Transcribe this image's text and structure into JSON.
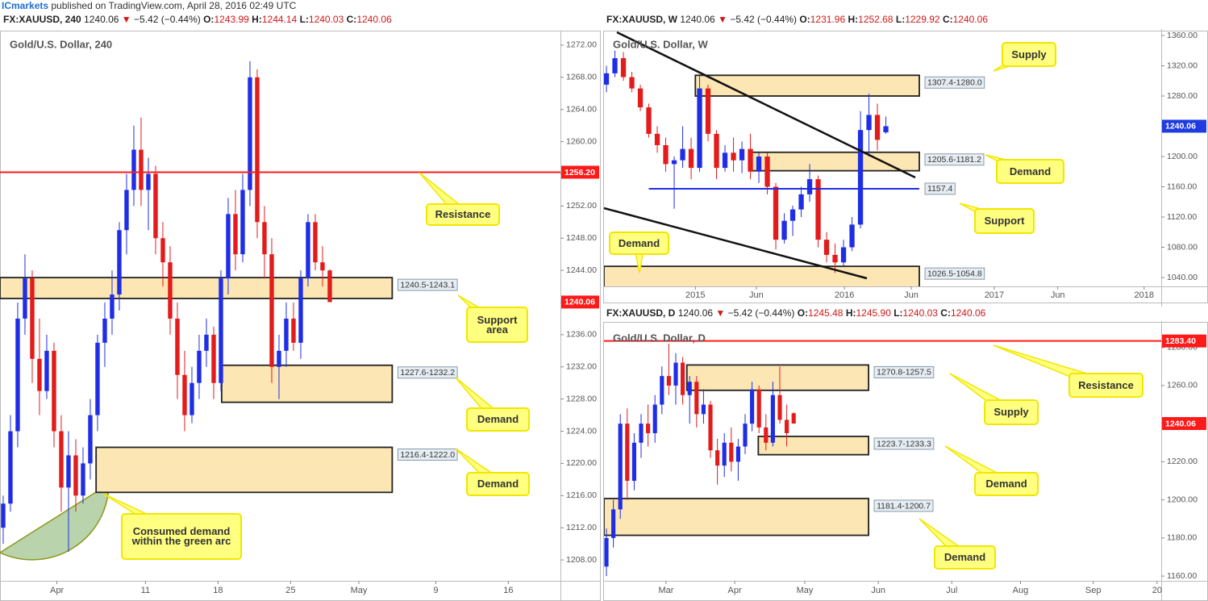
{
  "header": {
    "brand": "ICmarkets",
    "text": "published on TradingView.com, April 28, 2016 02:49 UTC"
  },
  "chart_data": [
    {
      "type": "candlestick",
      "symbol": "FX:XAUUSD, 240",
      "last": 1240.06,
      "arrow": "▼",
      "change": "−5.42 (−0.44%)",
      "ohlc": [
        {
          "name": "O:",
          "value": 1243.99
        },
        {
          "name": "H:",
          "value": 1244.14
        },
        {
          "name": "L:",
          "value": 1240.03
        },
        {
          "name": "C:",
          "value": 1240.06
        }
      ],
      "title": "Gold/U.S. Dollar, 240",
      "open": [
        1212,
        1215,
        1224,
        1238,
        1243,
        1233,
        1229,
        1234,
        1224,
        1217,
        1221,
        1216,
        1220,
        1226,
        1235,
        1238,
        1241,
        1249,
        1254,
        1259,
        1254,
        1256,
        1248,
        1245,
        1238,
        1231,
        1226,
        1230,
        1234,
        1236,
        1230,
        1243,
        1251,
        1246,
        1254,
        1268,
        1250,
        1246,
        1232,
        1234,
        1238,
        1235,
        1243,
        1250,
        1245,
        1243.99
      ],
      "high": [
        1216,
        1226,
        1240,
        1246,
        1244,
        1238,
        1236,
        1235,
        1226,
        1224,
        1223,
        1222,
        1228,
        1236,
        1240,
        1244,
        1250,
        1256,
        1262,
        1263,
        1258,
        1257,
        1250,
        1247,
        1240,
        1234,
        1232,
        1236,
        1238,
        1237,
        1244,
        1253,
        1254,
        1256,
        1270,
        1269,
        1252,
        1248,
        1236,
        1240,
        1240,
        1244,
        1251,
        1251,
        1247,
        1244.14
      ],
      "low": [
        1210,
        1214,
        1222,
        1236,
        1230,
        1226,
        1228,
        1222,
        1214,
        1209,
        1214,
        1215,
        1218,
        1224,
        1232,
        1236,
        1239,
        1246,
        1252,
        1252,
        1249,
        1246,
        1242,
        1236,
        1228,
        1224,
        1225,
        1228,
        1232,
        1228,
        1229,
        1241,
        1244,
        1245,
        1252,
        1248,
        1243,
        1230,
        1228,
        1232,
        1234,
        1233,
        1242,
        1244,
        1242,
        1240.03
      ],
      "close": [
        1215,
        1224,
        1238,
        1243,
        1233,
        1229,
        1234,
        1224,
        1217,
        1221,
        1216,
        1220,
        1226,
        1235,
        1238,
        1241,
        1249,
        1254,
        1259,
        1254,
        1256,
        1248,
        1245,
        1238,
        1231,
        1226,
        1230,
        1234,
        1236,
        1230,
        1243,
        1251,
        1246,
        1254,
        1268,
        1250,
        1246,
        1232,
        1234,
        1238,
        1235,
        1243,
        1250,
        1245,
        1243.99,
        1240.06
      ],
      "up_color": "#1f2ee6",
      "down_color": "#e31b1b",
      "last_color": "#ff1a1a",
      "xlim": [
        -0.44,
        76.78
      ],
      "xticks": [
        {
          "value": 7.4,
          "label": "Apr"
        },
        {
          "value": 19.6,
          "label": "11"
        },
        {
          "value": 29.6,
          "label": "18"
        },
        {
          "value": 39.6,
          "label": "25"
        },
        {
          "value": 49,
          "label": "May"
        },
        {
          "value": 59.6,
          "label": "9"
        },
        {
          "value": 69.6,
          "label": "16"
        }
      ],
      "ylim": [
        1205.4,
        1273.6
      ],
      "yticks": [
        {
          "value": 1208,
          "label": "1208.00"
        },
        {
          "value": 1212,
          "label": "1212.00"
        },
        {
          "value": 1216,
          "label": "1216.00"
        },
        {
          "value": 1220,
          "label": "1220.00"
        },
        {
          "value": 1224,
          "label": "1224.00"
        },
        {
          "value": 1228,
          "label": "1228.00"
        },
        {
          "value": 1232,
          "label": "1232.00"
        },
        {
          "value": 1236,
          "label": "1236.00"
        },
        {
          "value": 1240,
          "label": "1240.00"
        },
        {
          "value": 1244,
          "label": "1244.00"
        },
        {
          "value": 1248,
          "label": "1248.00"
        },
        {
          "value": 1252,
          "label": "1252.00"
        },
        {
          "value": 1256,
          "label": "1256.00"
        },
        {
          "value": 1260,
          "label": "1260.00"
        },
        {
          "value": 1264,
          "label": "1264.00"
        },
        {
          "value": 1268,
          "label": "1268.00"
        },
        {
          "value": 1272,
          "label": "1272.00"
        }
      ],
      "zones": [
        {
          "range": [
            1240.5,
            1243.1
          ],
          "x": [
            -0.44,
            53.6
          ],
          "label": "1240.5-1243.1"
        },
        {
          "range": [
            1227.6,
            1232.2
          ],
          "x": [
            30.1,
            53.6
          ],
          "label": "1227.6-1232.2"
        },
        {
          "range": [
            1216.4,
            1222.0
          ],
          "x": [
            12.8,
            53.6
          ],
          "label": "1216.4-1222.0"
        }
      ],
      "levels": [
        {
          "value": 1256.2,
          "label": "1256.20",
          "color": "#ff1a1a",
          "x": [
            -0.44,
            76.78
          ]
        }
      ],
      "callouts": [
        "Resistance",
        "Support area",
        "Demand",
        "Demand",
        "Consumed demand within the green arc"
      ]
    },
    {
      "type": "candlestick",
      "symbol": "FX:XAUUSD, W",
      "last": 1240.06,
      "arrow": "▼",
      "change": "−5.42 (−0.44%)",
      "ohlc": [
        {
          "name": "O:",
          "value": 1231.96
        },
        {
          "name": "H:",
          "value": 1252.68
        },
        {
          "name": "L:",
          "value": 1229.92
        },
        {
          "name": "C:",
          "value": 1240.06
        }
      ],
      "title": "Gold/U.S. Dollar, W",
      "open": [
        1295,
        1310,
        1330,
        1305,
        1290,
        1265,
        1230,
        1215,
        1190,
        1195,
        1210,
        1185,
        1290,
        1230,
        1185,
        1205,
        1195,
        1210,
        1180,
        1200,
        1160,
        1090,
        1115,
        1130,
        1150,
        1170,
        1090,
        1070,
        1060,
        1080,
        1110,
        1235,
        1255,
        1231.96
      ],
      "high": [
        1320,
        1340,
        1338,
        1312,
        1295,
        1270,
        1240,
        1225,
        1200,
        1240,
        1225,
        1307,
        1295,
        1235,
        1215,
        1225,
        1220,
        1230,
        1205,
        1205,
        1165,
        1125,
        1135,
        1160,
        1190,
        1175,
        1100,
        1085,
        1090,
        1120,
        1260,
        1283,
        1270,
        1252.68
      ],
      "low": [
        1285,
        1305,
        1300,
        1285,
        1260,
        1225,
        1205,
        1180,
        1131,
        1185,
        1170,
        1180,
        1220,
        1170,
        1180,
        1180,
        1178,
        1170,
        1165,
        1150,
        1077,
        1085,
        1095,
        1120,
        1140,
        1080,
        1060,
        1046,
        1055,
        1075,
        1105,
        1200,
        1208,
        1229.92
      ],
      "close": [
        1310,
        1330,
        1305,
        1290,
        1265,
        1230,
        1215,
        1190,
        1195,
        1210,
        1185,
        1290,
        1230,
        1185,
        1205,
        1195,
        1210,
        1180,
        1200,
        1160,
        1090,
        1115,
        1130,
        1150,
        1170,
        1090,
        1070,
        1060,
        1080,
        1110,
        1235,
        1255,
        1222,
        1240.06
      ],
      "up_color": "#1f2ee6",
      "down_color": "#e31b1b",
      "last_color": "#1f3ce0",
      "xlim": [
        -0.29,
        65.52
      ],
      "xticks": [
        {
          "value": 10.5,
          "label": "2015"
        },
        {
          "value": 17.7,
          "label": "Jun"
        },
        {
          "value": 28.1,
          "label": "2016"
        },
        {
          "value": 36,
          "label": "Jun"
        },
        {
          "value": 45.8,
          "label": "2017"
        },
        {
          "value": 53.3,
          "label": "Jun"
        },
        {
          "value": 63.5,
          "label": "2018"
        }
      ],
      "ylim": [
        1028.3,
        1366.4
      ],
      "yticks": [
        {
          "value": 1040,
          "label": "1040.00"
        },
        {
          "value": 1080,
          "label": "1080.00"
        },
        {
          "value": 1120,
          "label": "1120.00"
        },
        {
          "value": 1160,
          "label": "1160.00"
        },
        {
          "value": 1200,
          "label": "1200.00"
        },
        {
          "value": 1240,
          "label": "1240.00"
        },
        {
          "value": 1280,
          "label": "1280.00"
        },
        {
          "value": 1320,
          "label": "1320.00"
        },
        {
          "value": 1360,
          "label": "1360.00"
        }
      ],
      "zones": [
        {
          "range": [
            1307.4,
            1280.0
          ],
          "x": [
            10.5,
            36.95
          ],
          "label": "1307.4-1280.0"
        },
        {
          "range": [
            1205.6,
            1181.2
          ],
          "x": [
            17.1,
            36.95
          ],
          "label": "1205.6-1181.2"
        },
        {
          "range": [
            1026.5,
            1054.8
          ],
          "x": [
            -0.29,
            36.95
          ],
          "label": "1026.5-1054.8"
        }
      ],
      "levels": [
        {
          "value": 1157.4,
          "color": "#1f2ee6",
          "x": [
            5,
            36.95
          ]
        }
      ],
      "callouts": [
        "Supply",
        "Demand",
        "Support",
        "Demand"
      ]
    },
    {
      "type": "candlestick",
      "symbol": "FX:XAUUSD, D",
      "last": 1240.06,
      "arrow": "▼",
      "change": "−5.42 (−0.44%)",
      "ohlc": [
        {
          "name": "O:",
          "value": 1245.48
        },
        {
          "name": "H:",
          "value": {
            "value": 1245.9,
            "label": "1245.90"
          }
        },
        {
          "name": "L:",
          "value": 1240.03
        },
        {
          "name": "C:",
          "value": 1240.06
        }
      ],
      "title": "Gold/U.S. Dollar, D",
      "open": [
        1165,
        1180,
        1195,
        1240,
        1210,
        1230,
        1240,
        1235,
        1250,
        1265,
        1260,
        1272,
        1255,
        1262,
        1245,
        1250,
        1226,
        1218,
        1230,
        1220,
        1228,
        1240,
        1258,
        1238,
        1230,
        1255,
        1242,
        1245.48
      ],
      "high": [
        1185,
        1200,
        1245,
        1248,
        1235,
        1245,
        1250,
        1255,
        1270,
        1282,
        1277,
        1275,
        1265,
        1265,
        1258,
        1252,
        1232,
        1235,
        1238,
        1232,
        1245,
        1262,
        1260,
        1245,
        1262,
        1270,
        1250,
        1245.9
      ],
      "low": [
        1160,
        1175,
        1190,
        1200,
        1205,
        1222,
        1228,
        1230,
        1245,
        1255,
        1250,
        1250,
        1240,
        1238,
        1240,
        1222,
        1208,
        1212,
        1215,
        1210,
        1224,
        1236,
        1235,
        1226,
        1228,
        1240,
        1228,
        1240.03
      ],
      "close": [
        1180,
        1195,
        1240,
        1210,
        1230,
        1240,
        1235,
        1250,
        1265,
        1260,
        1272,
        1255,
        1262,
        1245,
        1250,
        1226,
        1218,
        1230,
        1220,
        1228,
        1240,
        1258,
        1238,
        1230,
        1255,
        1242,
        1235,
        1240.06
      ],
      "up_color": "#1f2ee6",
      "down_color": "#e31b1b",
      "last_color": "#ff1a1a",
      "xlim": [
        -0.35,
        80
      ],
      "xticks": [
        {
          "value": 8.6,
          "label": "Mar"
        },
        {
          "value": 18.5,
          "label": "Apr"
        },
        {
          "value": 28.6,
          "label": "May"
        },
        {
          "value": 39.2,
          "label": "Jun"
        },
        {
          "value": 49.8,
          "label": "Jul"
        },
        {
          "value": 59.7,
          "label": "Aug"
        },
        {
          "value": 70.2,
          "label": "Sep"
        },
        {
          "value": 79.4,
          "label": "20"
        }
      ],
      "ylim": [
        1157.5,
        1293.0
      ],
      "yticks": [
        {
          "value": 1160,
          "label": "1160.00"
        },
        {
          "value": 1180,
          "label": "1180.00"
        },
        {
          "value": 1200,
          "label": "1200.00"
        },
        {
          "value": 1220,
          "label": "1220.00"
        },
        {
          "value": 1240,
          "label": "1240.00"
        },
        {
          "value": 1260,
          "label": "1260.00"
        },
        {
          "value": 1280,
          "label": "1280.00"
        }
      ],
      "zones": [
        {
          "range": [
            1270.8,
            1257.5
          ],
          "x": [
            11.6,
            37.8
          ],
          "label": "1270.8-1257.5"
        },
        {
          "range": [
            1223.7,
            1233.3
          ],
          "x": [
            21.9,
            37.8
          ],
          "label": "1223.7-1233.3"
        },
        {
          "range": [
            1181.4,
            1200.7
          ],
          "x": [
            -0.35,
            37.8
          ],
          "label": "1181.4-1200.7"
        }
      ],
      "levels": [
        {
          "value": 1283.4,
          "label": "1283.40",
          "color": "#ff1a1a",
          "x": [
            -0.35,
            80
          ]
        }
      ],
      "callouts": [
        "Supply",
        "Resistance",
        "Demand",
        "Demand"
      ]
    }
  ]
}
